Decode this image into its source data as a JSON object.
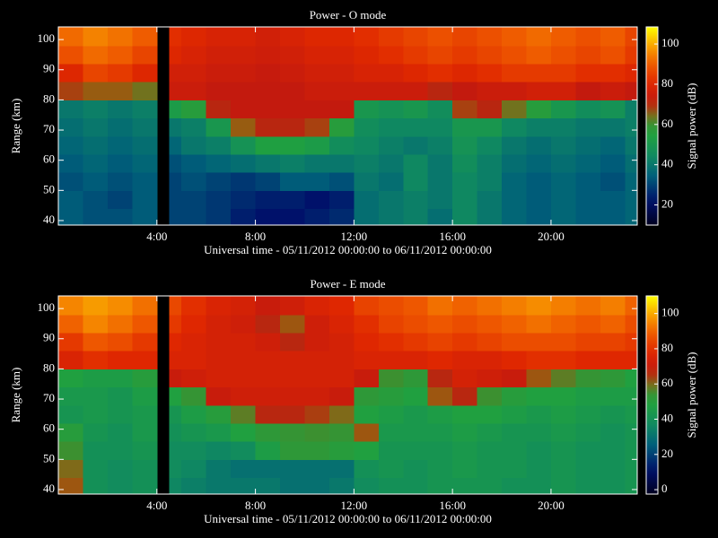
{
  "chart_data": [
    {
      "type": "heatmap",
      "title": "Power - O mode",
      "x_label": "Universal time - 05/11/2012 00:00:00 to 06/11/2012 00:00:00",
      "y_label": "Range (km)",
      "colorbar_label": "Signal power (dB)",
      "x": [
        0,
        1,
        2,
        3,
        4,
        4.5,
        5,
        6,
        7,
        8,
        9,
        10,
        11,
        12,
        13,
        14,
        15,
        16,
        17,
        18,
        19,
        20,
        21,
        22,
        23,
        23.5
      ],
      "y": [
        38.5,
        44,
        50,
        56,
        62,
        68,
        74,
        80,
        86,
        92,
        98,
        104.2
      ],
      "z": [
        [
          34,
          32,
          32,
          34,
          null,
          30,
          30,
          28,
          24,
          22,
          22,
          24,
          26,
          38,
          40,
          42,
          38,
          44,
          40,
          36,
          34,
          36,
          34,
          34,
          36
        ],
        [
          34,
          32,
          30,
          34,
          null,
          30,
          30,
          28,
          26,
          24,
          24,
          22,
          24,
          38,
          40,
          42,
          40,
          44,
          40,
          36,
          34,
          36,
          34,
          34,
          36
        ],
        [
          32,
          34,
          32,
          34,
          null,
          30,
          32,
          30,
          28,
          30,
          34,
          34,
          32,
          40,
          38,
          44,
          40,
          44,
          42,
          36,
          34,
          36,
          34,
          32,
          36
        ],
        [
          34,
          36,
          34,
          36,
          null,
          32,
          34,
          36,
          38,
          40,
          42,
          40,
          40,
          42,
          40,
          44,
          40,
          46,
          42,
          38,
          36,
          38,
          36,
          34,
          38
        ],
        [
          36,
          38,
          36,
          38,
          null,
          36,
          40,
          42,
          48,
          54,
          54,
          52,
          46,
          44,
          42,
          40,
          42,
          48,
          44,
          40,
          38,
          40,
          38,
          36,
          40
        ],
        [
          38,
          40,
          38,
          40,
          null,
          40,
          42,
          50,
          66,
          70,
          70,
          68,
          56,
          46,
          44,
          44,
          44,
          50,
          50,
          44,
          42,
          42,
          40,
          40,
          42
        ],
        [
          40,
          42,
          40,
          42,
          null,
          52,
          56,
          70,
          72,
          72,
          72,
          72,
          72,
          50,
          48,
          50,
          46,
          68,
          70,
          64,
          56,
          50,
          46,
          48,
          42
        ],
        [
          68,
          66,
          66,
          64,
          null,
          74,
          74,
          72,
          72,
          72,
          72,
          74,
          74,
          74,
          74,
          74,
          70,
          72,
          74,
          74,
          76,
          76,
          72,
          74,
          72
        ],
        [
          80,
          86,
          84,
          80,
          null,
          76,
          76,
          74,
          74,
          73,
          74,
          76,
          76,
          78,
          78,
          80,
          82,
          80,
          82,
          84,
          84,
          84,
          82,
          82,
          80
        ],
        [
          88,
          92,
          90,
          86,
          null,
          80,
          78,
          76,
          76,
          75,
          76,
          78,
          78,
          80,
          82,
          84,
          86,
          84,
          86,
          88,
          90,
          88,
          86,
          88,
          84
        ],
        [
          92,
          95,
          93,
          90,
          null,
          82,
          80,
          78,
          78,
          76,
          78,
          80,
          80,
          82,
          84,
          86,
          88,
          86,
          88,
          90,
          92,
          90,
          88,
          90,
          86
        ]
      ],
      "xlim": [
        0,
        23.5
      ],
      "ylim": [
        38.5,
        104.2
      ],
      "zlim": [
        10,
        108.5
      ],
      "xticks": [
        {
          "value": 4,
          "label": "4:00"
        },
        {
          "value": 8,
          "label": "8:00"
        },
        {
          "value": 12,
          "label": "12:00"
        },
        {
          "value": 16,
          "label": "16:00"
        },
        {
          "value": 20,
          "label": "20:00"
        }
      ],
      "yticks": [
        40,
        50,
        60,
        70,
        80,
        90,
        100
      ],
      "zticks": [
        20,
        40,
        60,
        80,
        100
      ]
    },
    {
      "type": "heatmap",
      "title": "Power - E mode",
      "x_label": "Universal time - 05/11/2012 00:00:00 to 06/11/2012 00:00:00",
      "y_label": "Range (km)",
      "colorbar_label": "Signal power (dB)",
      "x": [
        0,
        1,
        2,
        3,
        4,
        4.5,
        5,
        6,
        7,
        8,
        9,
        10,
        11,
        12,
        13,
        14,
        15,
        16,
        17,
        18,
        19,
        20,
        21,
        22,
        23,
        23.5
      ],
      "y": [
        38.5,
        44,
        50,
        56,
        62,
        68,
        74,
        80,
        86,
        92,
        98,
        104.2
      ],
      "z": [
        [
          62,
          40,
          38,
          40,
          null,
          36,
          34,
          32,
          32,
          32,
          30,
          30,
          32,
          38,
          40,
          40,
          42,
          42,
          42,
          40,
          40,
          42,
          40,
          40,
          42
        ],
        [
          60,
          40,
          38,
          40,
          null,
          38,
          36,
          32,
          30,
          30,
          30,
          30,
          30,
          40,
          42,
          40,
          42,
          44,
          42,
          42,
          40,
          42,
          40,
          40,
          42
        ],
        [
          56,
          40,
          40,
          42,
          null,
          38,
          38,
          36,
          38,
          46,
          52,
          52,
          50,
          48,
          42,
          42,
          42,
          44,
          42,
          42,
          40,
          42,
          40,
          40,
          42
        ],
        [
          50,
          42,
          40,
          44,
          null,
          40,
          42,
          44,
          48,
          52,
          54,
          56,
          54,
          62,
          44,
          44,
          44,
          46,
          44,
          42,
          42,
          44,
          42,
          40,
          42
        ],
        [
          42,
          44,
          42,
          44,
          null,
          42,
          46,
          50,
          58,
          66,
          66,
          64,
          60,
          48,
          46,
          44,
          46,
          48,
          48,
          46,
          44,
          46,
          44,
          42,
          44
        ],
        [
          44,
          44,
          42,
          46,
          null,
          48,
          54,
          70,
          72,
          72,
          72,
          72,
          70,
          52,
          50,
          48,
          62,
          66,
          56,
          50,
          48,
          48,
          46,
          46,
          46
        ],
        [
          48,
          46,
          46,
          50,
          null,
          70,
          72,
          74,
          74,
          74,
          74,
          74,
          74,
          70,
          56,
          52,
          66,
          74,
          72,
          70,
          62,
          58,
          54,
          52,
          48
        ],
        [
          76,
          80,
          78,
          78,
          null,
          76,
          76,
          74,
          74,
          74,
          74,
          74,
          74,
          76,
          76,
          76,
          78,
          76,
          76,
          78,
          80,
          80,
          78,
          78,
          78
        ],
        [
          82,
          88,
          86,
          82,
          null,
          78,
          76,
          74,
          74,
          72,
          66,
          72,
          74,
          78,
          80,
          82,
          84,
          82,
          84,
          86,
          86,
          86,
          84,
          84,
          82
        ],
        [
          90,
          95,
          92,
          88,
          null,
          82,
          78,
          74,
          72,
          66,
          62,
          72,
          76,
          80,
          84,
          86,
          88,
          86,
          88,
          90,
          92,
          90,
          88,
          90,
          86
        ],
        [
          95,
          98,
          96,
          92,
          null,
          85,
          80,
          76,
          74,
          70,
          72,
          76,
          78,
          84,
          86,
          88,
          92,
          90,
          92,
          94,
          96,
          94,
          92,
          94,
          90
        ]
      ],
      "xlim": [
        0,
        23.5
      ],
      "ylim": [
        38.5,
        104.2
      ],
      "zlim": [
        -2.5,
        110
      ],
      "xticks": [
        {
          "value": 4,
          "label": "4:00"
        },
        {
          "value": 8,
          "label": "8:00"
        },
        {
          "value": 12,
          "label": "12:00"
        },
        {
          "value": 16,
          "label": "16:00"
        },
        {
          "value": 20,
          "label": "20:00"
        }
      ],
      "yticks": [
        40,
        50,
        60,
        70,
        80,
        90,
        100
      ],
      "zticks": [
        0,
        20,
        40,
        60,
        80,
        100
      ]
    }
  ]
}
